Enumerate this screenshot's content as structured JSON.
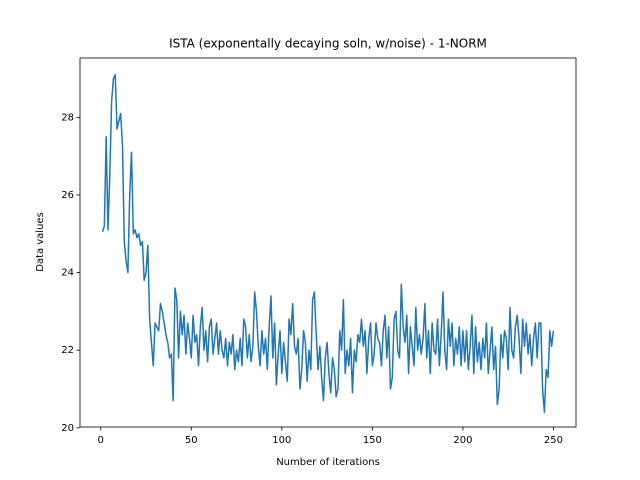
{
  "chart_data": {
    "type": "line",
    "title": "ISTA (exponentally decaying soln, w/noise) - 1-NORM",
    "xlabel": "Number of iterations",
    "ylabel": "Data values",
    "color": "#1f77b4",
    "xlim": [
      -11.45,
      262.45
    ],
    "ylim": [
      20.02,
      29.53
    ],
    "xticks": [
      0,
      50,
      100,
      150,
      200,
      250
    ],
    "yticks": [
      20,
      22,
      24,
      26,
      28
    ],
    "grid": false,
    "x": [
      1,
      2,
      3,
      4,
      5,
      6,
      7,
      8,
      9,
      10,
      11,
      12,
      13,
      14,
      15,
      16,
      17,
      18,
      19,
      20,
      21,
      22,
      23,
      24,
      25,
      26,
      27,
      28,
      29,
      30,
      31,
      32,
      33,
      34,
      35,
      36,
      37,
      38,
      39,
      40,
      41,
      42,
      43,
      44,
      45,
      46,
      47,
      48,
      49,
      50,
      51,
      52,
      53,
      54,
      55,
      56,
      57,
      58,
      59,
      60,
      61,
      62,
      63,
      64,
      65,
      66,
      67,
      68,
      69,
      70,
      71,
      72,
      73,
      74,
      75,
      76,
      77,
      78,
      79,
      80,
      81,
      82,
      83,
      84,
      85,
      86,
      87,
      88,
      89,
      90,
      91,
      92,
      93,
      94,
      95,
      96,
      97,
      98,
      99,
      100,
      101,
      102,
      103,
      104,
      105,
      106,
      107,
      108,
      109,
      110,
      111,
      112,
      113,
      114,
      115,
      116,
      117,
      118,
      119,
      120,
      121,
      122,
      123,
      124,
      125,
      126,
      127,
      128,
      129,
      130,
      131,
      132,
      133,
      134,
      135,
      136,
      137,
      138,
      139,
      140,
      141,
      142,
      143,
      144,
      145,
      146,
      147,
      148,
      149,
      150,
      151,
      152,
      153,
      154,
      155,
      156,
      157,
      158,
      159,
      160,
      161,
      162,
      163,
      164,
      165,
      166,
      167,
      168,
      169,
      170,
      171,
      172,
      173,
      174,
      175,
      176,
      177,
      178,
      179,
      180,
      181,
      182,
      183,
      184,
      185,
      186,
      187,
      188,
      189,
      190,
      191,
      192,
      193,
      194,
      195,
      196,
      197,
      198,
      199,
      200,
      201,
      202,
      203,
      204,
      205,
      206,
      207,
      208,
      209,
      210,
      211,
      212,
      213,
      214,
      215,
      216,
      217,
      218,
      219,
      220,
      221,
      222,
      223,
      224,
      225,
      226,
      227,
      228,
      229,
      230,
      231,
      232,
      233,
      234,
      235,
      236,
      237,
      238,
      239,
      240,
      241,
      242,
      243,
      244,
      245,
      246,
      247,
      248,
      249,
      250
    ],
    "values": [
      25.05,
      25.2,
      27.5,
      25.1,
      26.5,
      28.4,
      29.0,
      29.1,
      27.7,
      27.9,
      28.1,
      27.3,
      24.8,
      24.3,
      24.0,
      26.0,
      27.1,
      25.0,
      25.1,
      24.9,
      25.0,
      24.7,
      24.8,
      23.8,
      24.0,
      24.7,
      22.8,
      22.2,
      21.6,
      22.7,
      22.6,
      22.5,
      23.2,
      23.0,
      22.7,
      22.4,
      22.2,
      21.8,
      21.9,
      20.7,
      23.6,
      23.3,
      21.8,
      23.0,
      22.4,
      22.9,
      21.9,
      22.7,
      22.3,
      21.8,
      22.9,
      22.2,
      22.4,
      21.6,
      22.6,
      23.1,
      22.0,
      22.5,
      21.7,
      22.6,
      22.8,
      21.9,
      22.3,
      22.7,
      21.9,
      22.5,
      22.0,
      21.8,
      22.3,
      21.6,
      22.2,
      21.9,
      22.4,
      21.5,
      22.0,
      21.7,
      22.3,
      21.6,
      22.8,
      22.6,
      21.8,
      22.4,
      21.7,
      22.1,
      23.5,
      23.0,
      22.1,
      21.6,
      22.5,
      21.9,
      22.3,
      21.5,
      22.6,
      23.4,
      21.8,
      22.7,
      21.1,
      21.9,
      22.5,
      21.4,
      22.2,
      21.7,
      21.2,
      22.8,
      22.4,
      23.2,
      22.1,
      21.9,
      22.3,
      21.0,
      21.5,
      22.5,
      22.2,
      21.2,
      22.0,
      21.5,
      23.3,
      23.5,
      22.4,
      21.5,
      22.1,
      21.3,
      20.7,
      21.8,
      22.2,
      21.4,
      20.9,
      21.8,
      21.5,
      20.8,
      21.0,
      22.5,
      22.0,
      23.3,
      21.4,
      22.0,
      21.6,
      22.3,
      20.9,
      22.0,
      21.7,
      22.4,
      22.2,
      22.8,
      22.1,
      22.5,
      21.4,
      22.3,
      22.7,
      21.6,
      21.9,
      22.7,
      22.3,
      22.2,
      21.6,
      22.5,
      22.9,
      21.8,
      22.6,
      21.0,
      21.3,
      22.8,
      23.0,
      22.0,
      21.8,
      23.7,
      22.6,
      22.2,
      22.9,
      21.4,
      22.6,
      22.1,
      21.6,
      23.1,
      22.0,
      22.4,
      21.9,
      22.3,
      23.2,
      21.8,
      22.5,
      21.4,
      22.7,
      22.0,
      21.9,
      22.8,
      21.6,
      22.4,
      23.5,
      22.0,
      21.5,
      22.8,
      22.1,
      22.7,
      21.6,
      22.3,
      21.9,
      22.6,
      21.6,
      22.5,
      21.7,
      22.5,
      21.5,
      22.1,
      22.9,
      21.4,
      22.6,
      21.7,
      22.2,
      21.5,
      22.3,
      21.8,
      22.7,
      21.4,
      22.0,
      22.6,
      21.5,
      22.1,
      20.6,
      21.0,
      22.4,
      21.8,
      22.5,
      22.3,
      21.5,
      23.1,
      22.0,
      21.8,
      22.6,
      22.9,
      22.3,
      21.4,
      22.8,
      22.1,
      22.7,
      21.9,
      22.4,
      21.6,
      22.3,
      22.7,
      21.8,
      22.7,
      22.7,
      21.0,
      20.4,
      21.5,
      21.3,
      22.5,
      22.1,
      22.5
    ]
  }
}
